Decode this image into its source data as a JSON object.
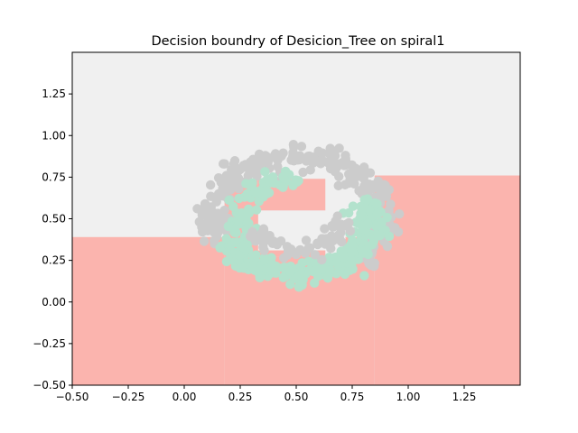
{
  "chart_data": {
    "type": "scatter",
    "title": "Decision boundry of Desicion_Tree on spiral1",
    "xlabel": "",
    "ylabel": "",
    "xlim": [
      -0.5,
      1.5
    ],
    "ylim": [
      -0.5,
      1.5
    ],
    "x_ticks": [
      -0.5,
      -0.25,
      0.0,
      0.25,
      0.5,
      0.75,
      1.0,
      1.25
    ],
    "y_ticks": [
      -0.5,
      -0.25,
      0.0,
      0.25,
      0.5,
      0.75,
      1.0,
      1.25
    ],
    "x_tick_labels": [
      "−0.50",
      "−0.25",
      "0.00",
      "0.25",
      "0.50",
      "0.75",
      "1.00",
      "1.25"
    ],
    "y_tick_labels": [
      "−0.50",
      "−0.25",
      "0.00",
      "0.25",
      "0.50",
      "0.75",
      "1.00",
      "1.25"
    ],
    "grid": false,
    "legend": "none",
    "colors": {
      "background_region": "#f0f0f0",
      "class1_region": "#fbb4ae",
      "class0_points": "#cccccc",
      "class1_points": "#b3e2cd"
    },
    "regions": [
      {
        "class": 1,
        "x": [
          -0.5,
          0.18
        ],
        "y": [
          -0.5,
          0.39
        ]
      },
      {
        "class": 1,
        "x": [
          0.18,
          0.85
        ],
        "y": [
          -0.5,
          0.27
        ]
      },
      {
        "class": 1,
        "x": [
          0.85,
          1.5
        ],
        "y": [
          -0.5,
          0.76
        ]
      },
      {
        "class": 1,
        "x": [
          0.18,
          0.33
        ],
        "y": [
          0.27,
          0.74
        ]
      },
      {
        "class": 1,
        "x": [
          0.33,
          0.63
        ],
        "y": [
          0.27,
          0.31
        ]
      },
      {
        "class": 1,
        "x": [
          0.33,
          0.63
        ],
        "y": [
          0.55,
          0.74
        ]
      },
      {
        "class": 1,
        "x": [
          0.72,
          0.85
        ],
        "y": [
          0.27,
          0.39
        ]
      }
    ],
    "series": [
      {
        "class": 0,
        "ring": {
          "cx": 0.5,
          "cy": 0.5,
          "r": 0.38,
          "noise": 0.035,
          "a0": -40,
          "a1": 200,
          "count": 320
        }
      },
      {
        "class": 1,
        "ring": {
          "cx": 0.5,
          "cy": 0.5,
          "r": 0.33,
          "noise": 0.035,
          "a0": 200,
          "a1": 380,
          "count": 260
        }
      },
      {
        "class": 1,
        "ring": {
          "cx": 0.5,
          "cy": 0.5,
          "r": 0.25,
          "noise": 0.03,
          "a0": 90,
          "a1": 200,
          "count": 70
        }
      },
      {
        "class": 0,
        "ring": {
          "cx": 0.5,
          "cy": 0.5,
          "r": 0.2,
          "noise": 0.025,
          "a0": 200,
          "a1": 360,
          "count": 70
        }
      }
    ]
  }
}
